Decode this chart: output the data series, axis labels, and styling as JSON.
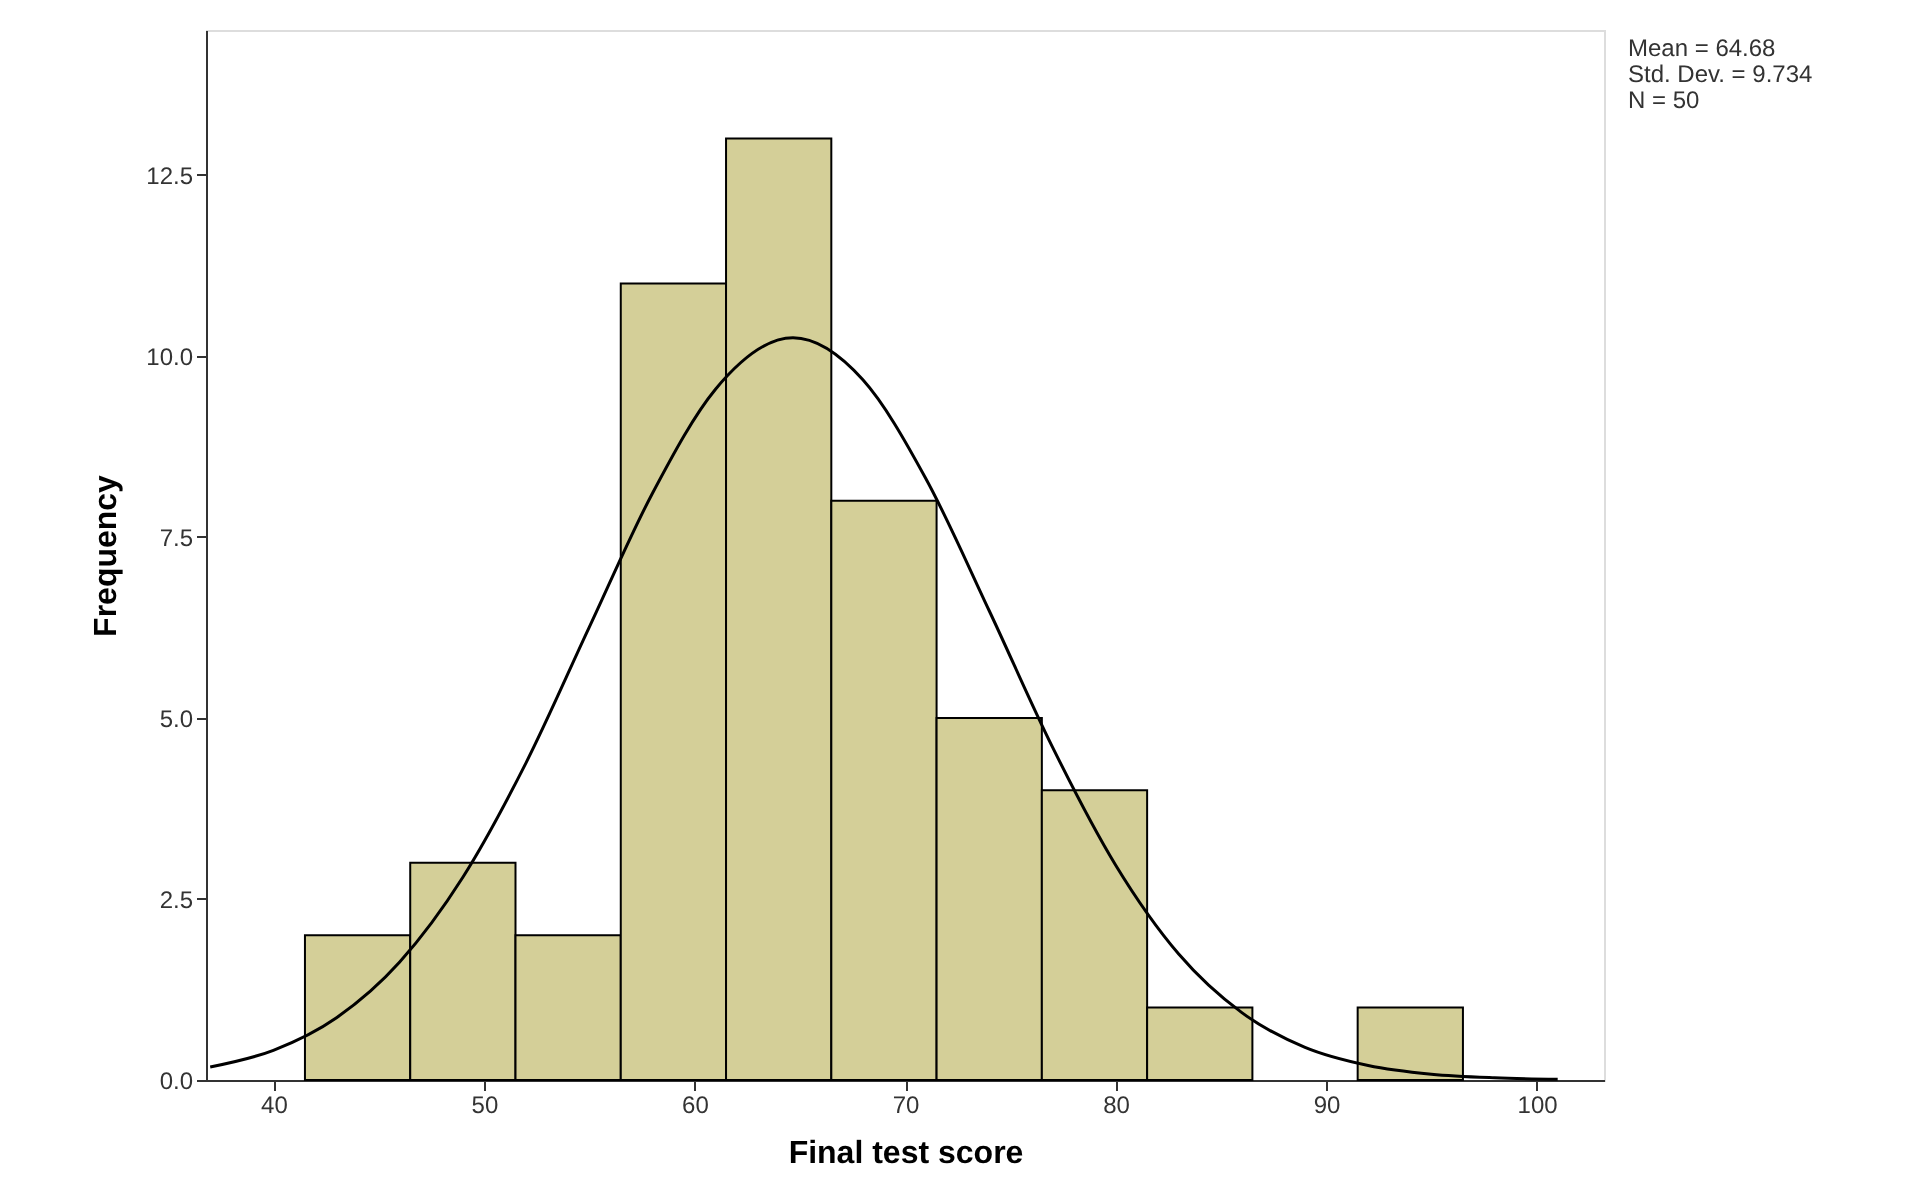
{
  "chart_data": {
    "type": "histogram",
    "xlabel": "Final test score",
    "ylabel": "Frequency",
    "bins": [
      41.5,
      46.5,
      51.5,
      56.5,
      61.5,
      66.5,
      71.5,
      76.5,
      81.5,
      86.5,
      91.5,
      96.5
    ],
    "values": [
      2,
      3,
      2,
      11,
      13,
      8,
      5,
      4,
      1,
      0,
      1
    ],
    "color": "#d4cf98",
    "series": [
      {
        "type": "line",
        "color": "#000000",
        "marker": "none",
        "line_style": "solid",
        "x": [
          37,
          40,
          43,
          46,
          49,
          52,
          55,
          58,
          61,
          64.68,
          68,
          71,
          74,
          77,
          80,
          83,
          86,
          89,
          92,
          95,
          98,
          101
        ],
        "values": [
          0.18,
          0.41,
          0.86,
          1.63,
          2.8,
          4.38,
          6.25,
          8.1,
          9.54,
          10.25,
          9.67,
          8.3,
          6.48,
          4.6,
          2.97,
          1.74,
          0.93,
          0.45,
          0.2,
          0.08,
          0.03,
          0.01
        ]
      }
    ],
    "xlim": [
      36.8,
      103.2
    ],
    "ylim": [
      0,
      14.5
    ],
    "xticks": [
      40,
      50,
      60,
      70,
      80,
      90,
      100
    ],
    "yticks": [
      {
        "value": 0,
        "label": "0.0"
      },
      {
        "value": 2.5,
        "label": "2.5"
      },
      {
        "value": 5,
        "label": "5.0"
      },
      {
        "value": 7.5,
        "label": "7.5"
      },
      {
        "value": 10,
        "label": "10.0"
      },
      {
        "value": 12.5,
        "label": "12.5"
      }
    ],
    "grid": false,
    "annotations": [
      "Mean = 64.68",
      "Std. Dev. = 9.734",
      "N = 50"
    ]
  }
}
